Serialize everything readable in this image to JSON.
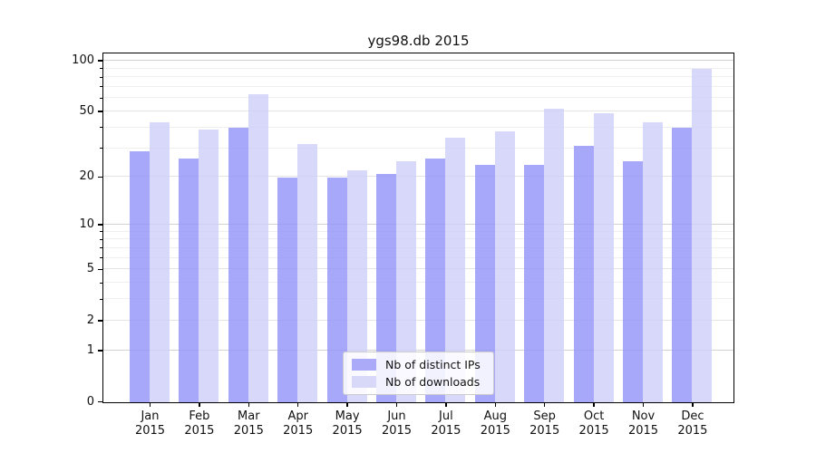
{
  "title": "ygs98.db 2015",
  "y_axis": {
    "labels": [
      "100",
      "50",
      "20",
      "10",
      "5",
      "2",
      "1",
      "0"
    ],
    "values": [
      100,
      50,
      20,
      10,
      5,
      2,
      1,
      0
    ],
    "minor_values": [
      3,
      4,
      6,
      7,
      8,
      9,
      30,
      40,
      60,
      70,
      80,
      90
    ]
  },
  "x_axis": {
    "months": [
      "Jan",
      "Feb",
      "Mar",
      "Apr",
      "May",
      "Jun",
      "Jul",
      "Aug",
      "Sep",
      "Oct",
      "Nov",
      "Dec"
    ],
    "year": "2015"
  },
  "legend": {
    "items": [
      {
        "label": "Nb of distinct IPs",
        "color": "#aaaaf9"
      },
      {
        "label": "Nb of downloads",
        "color": "#d8d8f8"
      }
    ]
  },
  "chart_data": {
    "type": "bar",
    "title": "ygs98.db 2015",
    "categories": [
      "Jan 2015",
      "Feb 2015",
      "Mar 2015",
      "Apr 2015",
      "May 2015",
      "Jun 2015",
      "Jul 2015",
      "Aug 2015",
      "Sep 2015",
      "Oct 2015",
      "Nov 2015",
      "Dec 2015"
    ],
    "series": [
      {
        "name": "Nb of distinct IPs",
        "color": "#aaaaf9",
        "values": [
          29,
          26,
          40,
          20,
          20,
          21,
          26,
          24,
          24,
          31,
          25,
          40
        ]
      },
      {
        "name": "Nb of downloads",
        "color": "#d8d8f8",
        "values": [
          43,
          39,
          64,
          32,
          22,
          25,
          35,
          38,
          52,
          49,
          43,
          90
        ]
      }
    ],
    "yscale": "log1p",
    "ylim": [
      0,
      110
    ],
    "y_ticks": [
      0,
      1,
      2,
      5,
      10,
      20,
      50,
      100
    ],
    "y_minor_ticks": [
      3,
      4,
      6,
      7,
      8,
      9,
      30,
      40,
      60,
      70,
      80,
      90
    ],
    "grid": "horizontal",
    "legend_position": "lower-center"
  }
}
